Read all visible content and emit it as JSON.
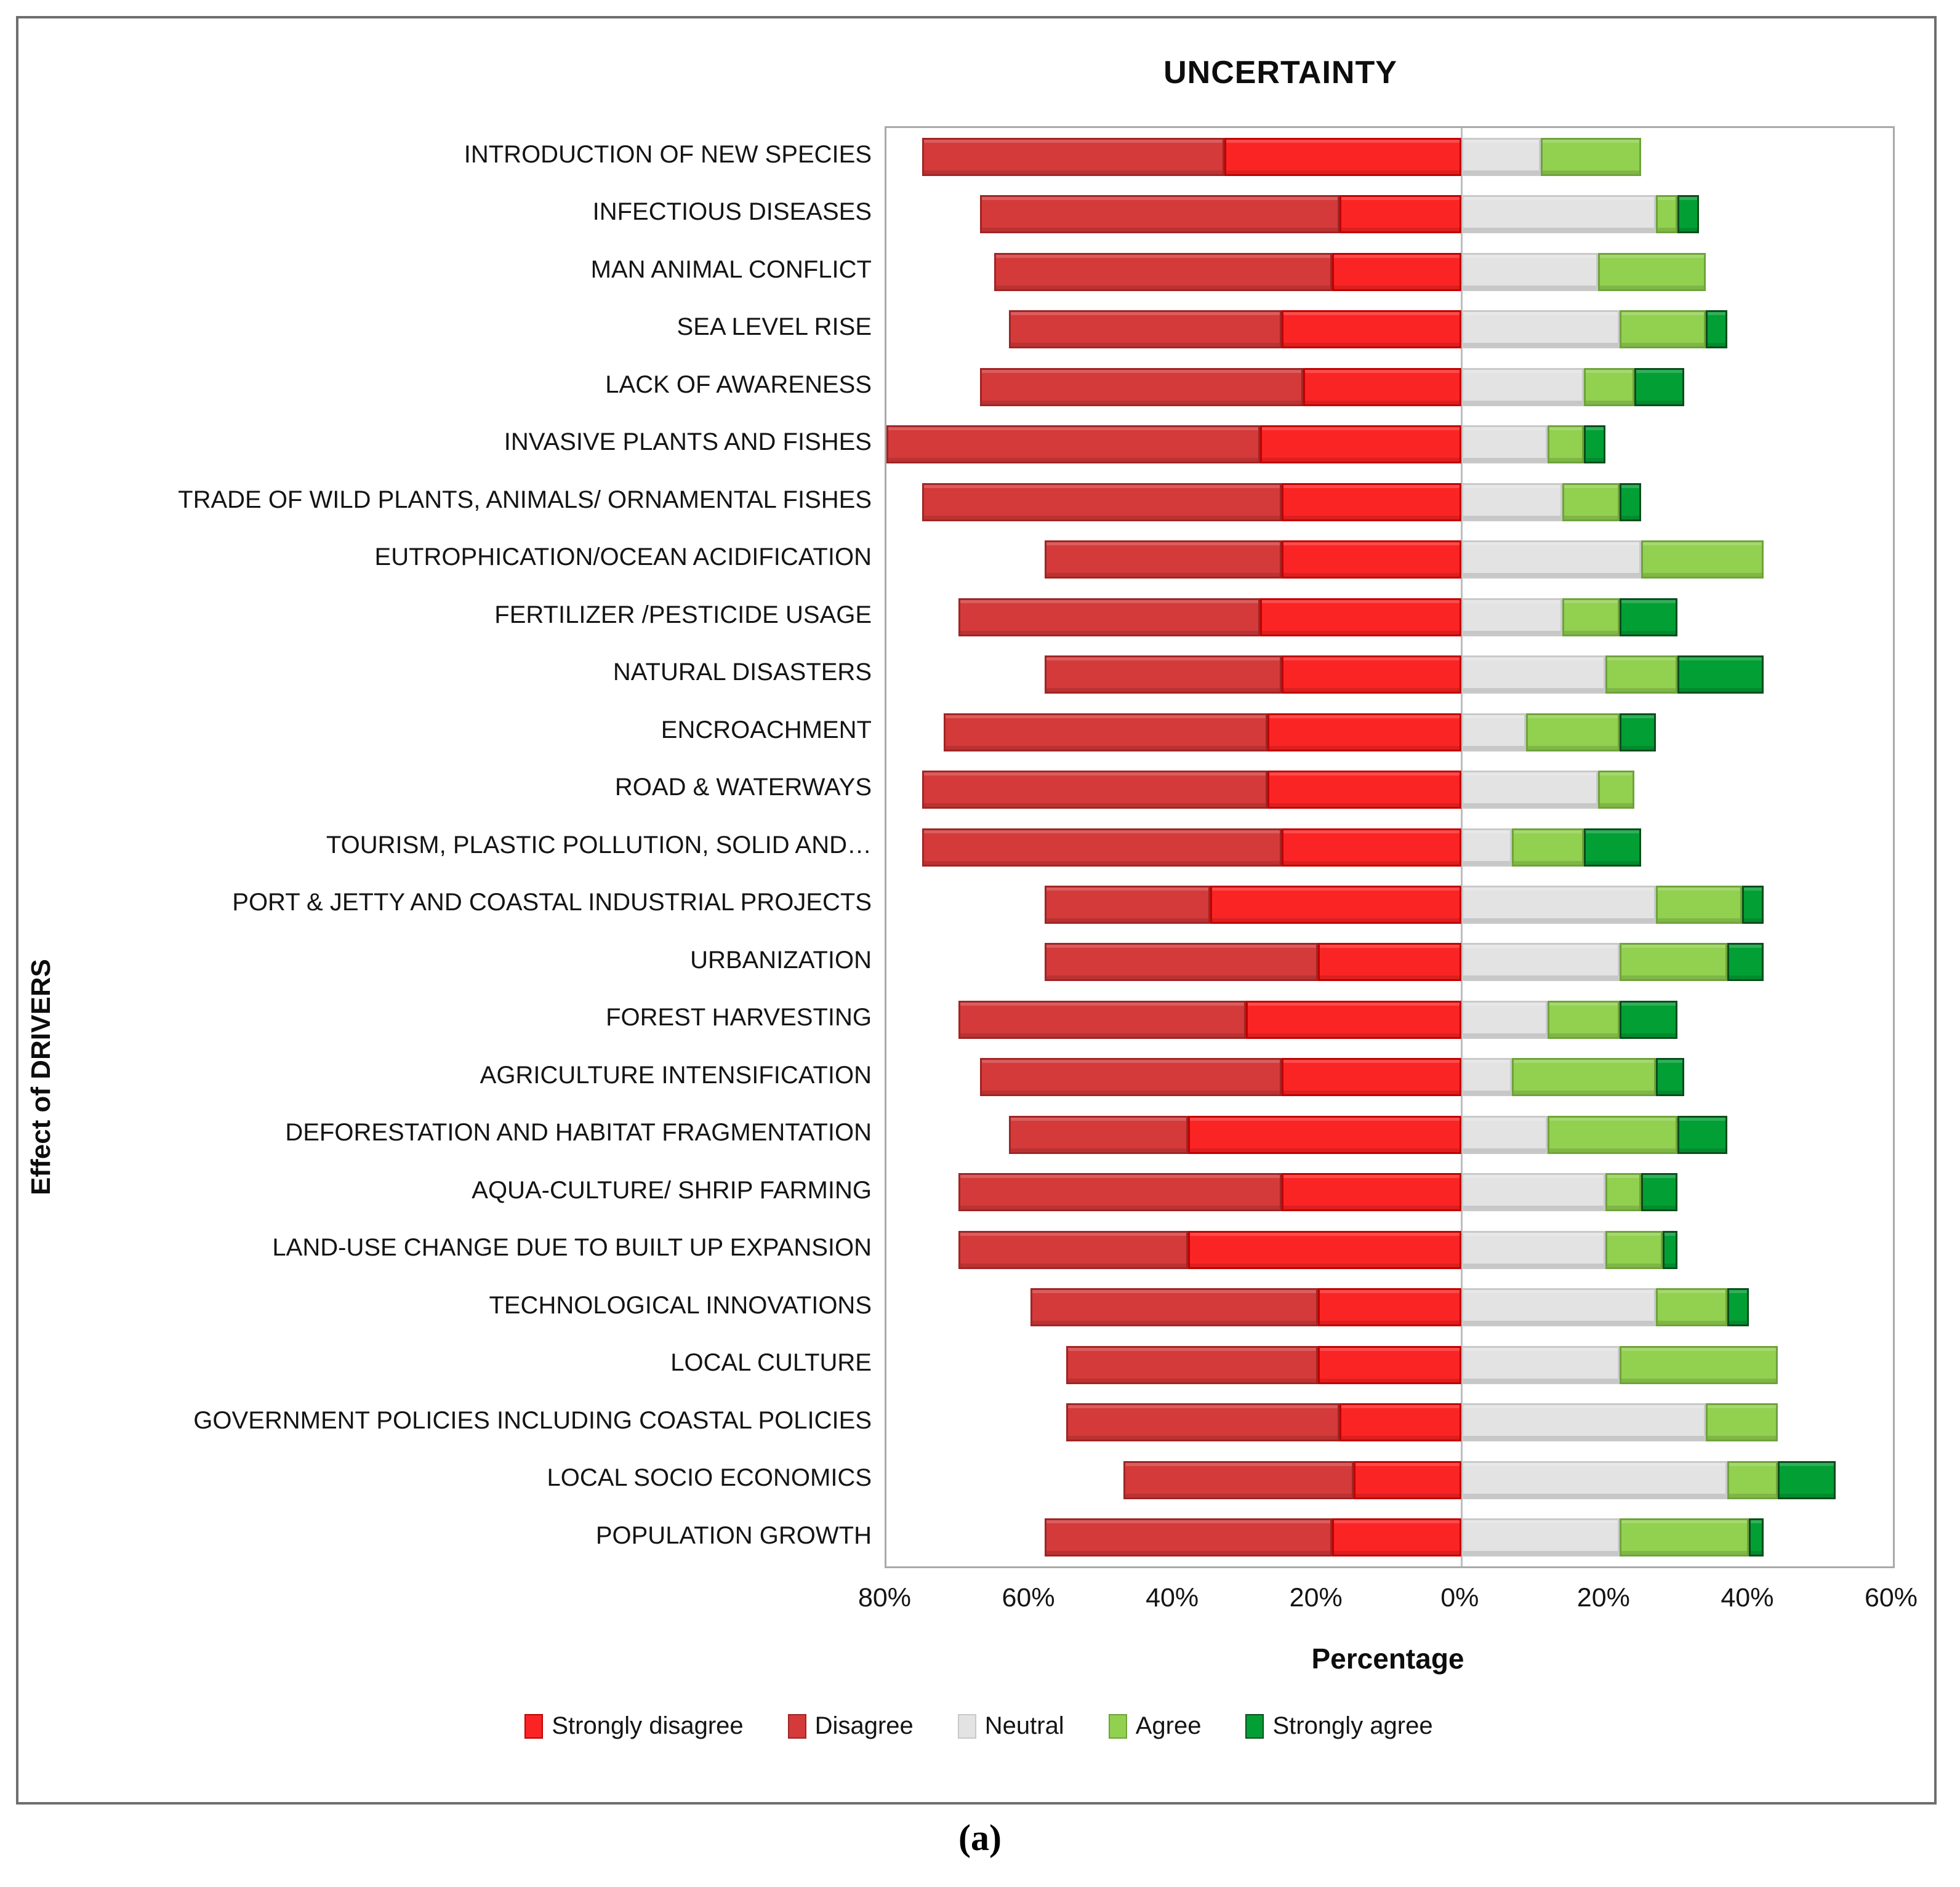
{
  "figure": {
    "caption": "(a)"
  },
  "chart_data": {
    "type": "bar",
    "subtype": "diverging-stacked-likert",
    "title": "UNCERTAINTY",
    "xlabel": "Percentage",
    "ylabel": "Effect of DRIVERS",
    "xlim": [
      -80,
      60
    ],
    "x_tick_step": 20,
    "x_tick_labels": [
      "80%",
      "60%",
      "40%",
      "20%",
      "0%",
      "20%",
      "40%",
      "60%"
    ],
    "grid": "zero-line-only",
    "legend_position": "bottom",
    "note": "Disagree side plotted left of 0 (order from axis outward: Strongly disagree, then Disagree); Agree side plotted right of 0 (Neutral, Agree, Strongly agree). Values are percentages.",
    "categories": [
      "INTRODUCTION OF NEW SPECIES",
      "INFECTIOUS DISEASES",
      "MAN ANIMAL CONFLICT",
      "SEA LEVEL RISE",
      "LACK OF AWARENESS",
      "INVASIVE PLANTS AND FISHES",
      "TRADE OF WILD PLANTS, ANIMALS/ ORNAMENTAL FISHES",
      "EUTROPHICATION/OCEAN ACIDIFICATION",
      "FERTILIZER /PESTICIDE USAGE",
      "NATURAL DISASTERS",
      "ENCROACHMENT",
      "ROAD & WATERWAYS",
      "TOURISM, PLASTIC POLLUTION, SOLID AND…",
      "PORT & JETTY AND COASTAL INDUSTRIAL PROJECTS",
      "URBANIZATION",
      "FOREST HARVESTING",
      "AGRICULTURE INTENSIFICATION",
      "DEFORESTATION AND HABITAT FRAGMENTATION",
      "AQUA-CULTURE/ SHRIP FARMING",
      "LAND-USE CHANGE DUE TO BUILT UP EXPANSION",
      "TECHNOLOGICAL INNOVATIONS",
      "LOCAL CULTURE",
      "GOVERNMENT POLICIES INCLUDING COASTAL POLICIES",
      "LOCAL SOCIO ECONOMICS",
      "POPULATION GROWTH"
    ],
    "series": [
      {
        "key": "strongly_disagree",
        "name": "Strongly disagree",
        "color": "#FB2424",
        "border": "#C00000",
        "side": "left",
        "values": [
          33,
          17,
          18,
          25,
          22,
          28,
          25,
          25,
          28,
          25,
          27,
          27,
          25,
          35,
          20,
          30,
          25,
          38,
          25,
          38,
          20,
          20,
          17,
          15,
          18
        ]
      },
      {
        "key": "disagree",
        "name": "Disagree",
        "color": "#D43A3A",
        "border": "#A02525",
        "side": "left",
        "values": [
          42,
          50,
          47,
          38,
          45,
          52,
          50,
          33,
          42,
          33,
          45,
          48,
          50,
          23,
          38,
          40,
          42,
          25,
          45,
          32,
          40,
          35,
          38,
          32,
          40
        ]
      },
      {
        "key": "neutral",
        "name": "Neutral",
        "color": "#E3E3E3",
        "border": "#C9C9C9",
        "side": "right",
        "values": [
          11,
          27,
          19,
          22,
          17,
          12,
          14,
          25,
          14,
          20,
          9,
          19,
          7,
          27,
          22,
          12,
          7,
          12,
          20,
          20,
          27,
          22,
          34,
          37,
          22
        ]
      },
      {
        "key": "agree",
        "name": "Agree",
        "color": "#92D050",
        "border": "#6FA33B",
        "side": "right",
        "values": [
          14,
          3,
          15,
          12,
          7,
          5,
          8,
          17,
          8,
          10,
          13,
          5,
          10,
          12,
          15,
          10,
          20,
          18,
          5,
          8,
          10,
          22,
          10,
          7,
          18
        ]
      },
      {
        "key": "strongly_agree",
        "name": "Strongly agree",
        "color": "#029F35",
        "border": "#0B4D1C",
        "side": "right",
        "values": [
          0,
          3,
          0,
          3,
          7,
          3,
          3,
          0,
          8,
          12,
          5,
          0,
          8,
          3,
          5,
          8,
          4,
          7,
          5,
          2,
          3,
          0,
          0,
          8,
          2
        ]
      }
    ]
  }
}
